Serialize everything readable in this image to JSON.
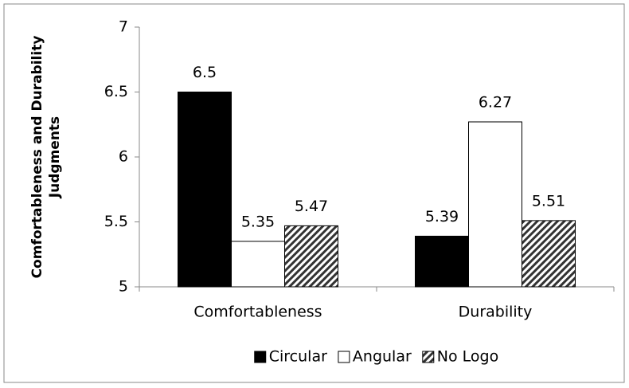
{
  "chart_data": {
    "type": "bar",
    "ylabel": "Comfortableness and Durability Judgments",
    "categories": [
      "Comfortableness",
      "Durability"
    ],
    "series": [
      {
        "name": "Circular",
        "color": "#000000",
        "values": [
          6.5,
          5.39
        ]
      },
      {
        "name": "Angular",
        "color": "#ffffff",
        "values": [
          5.35,
          6.27
        ]
      },
      {
        "name": "No Logo",
        "color": "#000000",
        "hatch": true,
        "values": [
          5.47,
          5.51
        ]
      }
    ],
    "ylim": [
      5,
      7
    ],
    "yticks": [
      5,
      5.5,
      6,
      6.5,
      7
    ],
    "grid": false,
    "legend": "bottom"
  }
}
